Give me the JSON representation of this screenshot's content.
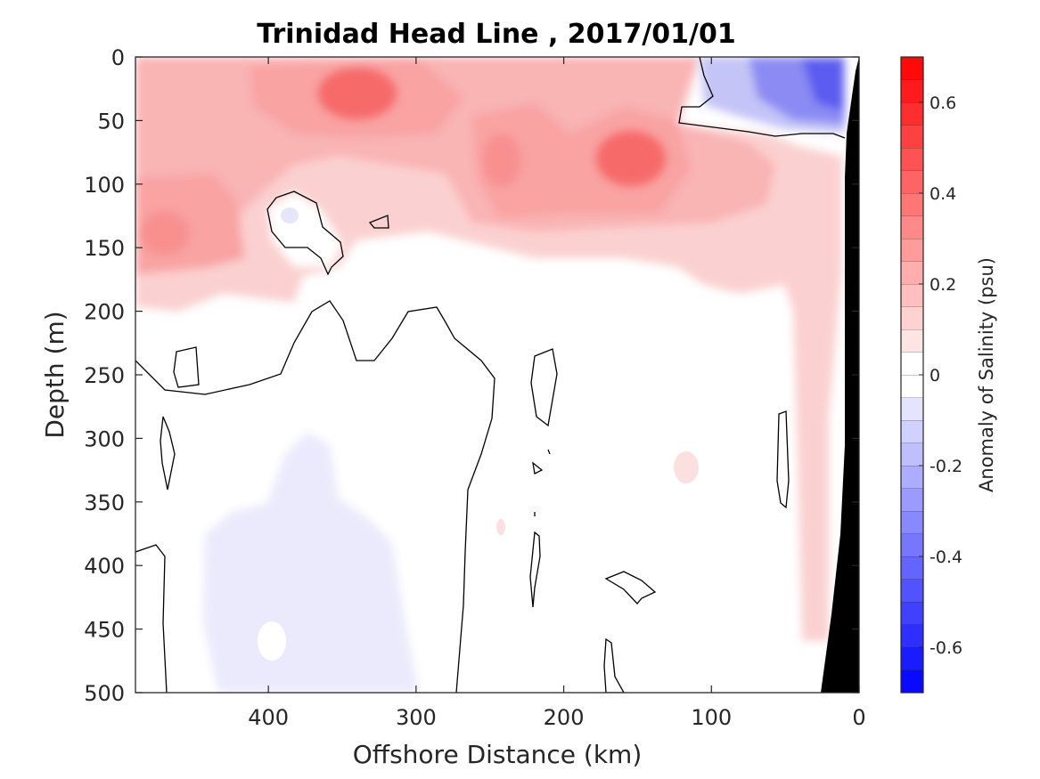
{
  "chart_data": {
    "type": "contour",
    "title": "Trinidad Head Line , 2017/01/01",
    "xlabel": "Offshore Distance (km)",
    "ylabel": "Depth (m)",
    "colorbar_label": "Anomaly of Salinity (psu)",
    "xlim": [
      490,
      0
    ],
    "ylim": [
      0,
      500
    ],
    "x_reversed": true,
    "y_reversed": true,
    "x_ticks": [
      400,
      300,
      200,
      100,
      0
    ],
    "y_ticks": [
      0,
      50,
      100,
      150,
      200,
      250,
      300,
      350,
      400,
      450,
      500
    ],
    "colorbar_range": [
      -0.7,
      0.7
    ],
    "colorbar_step": 0.05,
    "colorbar_ticks": [
      {
        "value": 0.6,
        "label": "0.6"
      },
      {
        "value": 0.4,
        "label": "0.4"
      },
      {
        "value": 0.2,
        "label": "0.2"
      },
      {
        "value": 0.0,
        "label": "0"
      },
      {
        "value": -0.2,
        "label": "-0.2"
      },
      {
        "value": -0.4,
        "label": "-0.4"
      },
      {
        "value": -0.6,
        "label": "-0.6"
      }
    ],
    "colormap": {
      "positive": "#ff0000",
      "negative": "#0000ff",
      "zero": "#ffffff"
    },
    "features": [
      {
        "kind": "positive-anomaly",
        "x": 335,
        "y": 25,
        "anomaly": 0.4
      },
      {
        "kind": "positive-anomaly",
        "x": 155,
        "y": 80,
        "anomaly": 0.4
      },
      {
        "kind": "positive-anomaly",
        "x": 240,
        "y": 90,
        "anomaly": 0.3
      },
      {
        "kind": "positive-anomaly",
        "x": 465,
        "y": 140,
        "anomaly": 0.3
      },
      {
        "kind": "negative-anomaly",
        "x": 15,
        "y": 25,
        "anomaly": -0.5
      },
      {
        "kind": "negative-anomaly",
        "x": 370,
        "y": 400,
        "anomaly": -0.05
      }
    ],
    "land_mask_color": "#000000",
    "zero_contour_color": "#000000"
  }
}
